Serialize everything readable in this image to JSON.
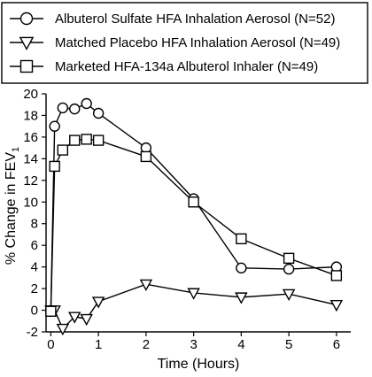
{
  "chart_data": {
    "type": "line",
    "title": "",
    "xlabel": "Time (Hours)",
    "ylabel_main": "% Change in FEV",
    "ylabel_sub": "1",
    "xlim": [
      -0.1,
      6.3
    ],
    "ylim": [
      -2,
      20
    ],
    "xticks": [
      0,
      1,
      2,
      3,
      4,
      5,
      6
    ],
    "yticks": [
      -2,
      0,
      2,
      4,
      6,
      8,
      10,
      12,
      14,
      16,
      18,
      20
    ],
    "grid": false,
    "legend_position": "top",
    "series": [
      {
        "name": "Albuterol Sulfate HFA Inhalation Aerosol (N=52)",
        "marker": "circle",
        "x": [
          0,
          0.08,
          0.25,
          0.5,
          0.75,
          1,
          2,
          3,
          4,
          5,
          6
        ],
        "y": [
          -0.1,
          17.0,
          18.7,
          18.6,
          19.1,
          18.2,
          15.0,
          10.3,
          3.9,
          3.8,
          4.0
        ]
      },
      {
        "name": "Matched Placebo HFA Inhalation Aerosol (N=49)",
        "marker": "triangle-down",
        "x": [
          0,
          0.08,
          0.25,
          0.5,
          0.75,
          1,
          2,
          3,
          4,
          5,
          6
        ],
        "y": [
          0.0,
          0.0,
          -1.7,
          -0.6,
          -0.8,
          0.8,
          2.4,
          1.6,
          1.2,
          1.5,
          0.5
        ]
      },
      {
        "name": "Marketed HFA-134a Albuterol Inhaler (N=49)",
        "marker": "square",
        "x": [
          0,
          0.08,
          0.25,
          0.5,
          0.75,
          1,
          2,
          3,
          4,
          5,
          6
        ],
        "y": [
          -0.1,
          13.3,
          14.8,
          15.7,
          15.8,
          15.7,
          14.2,
          10.0,
          6.6,
          4.8,
          3.2
        ]
      }
    ]
  }
}
